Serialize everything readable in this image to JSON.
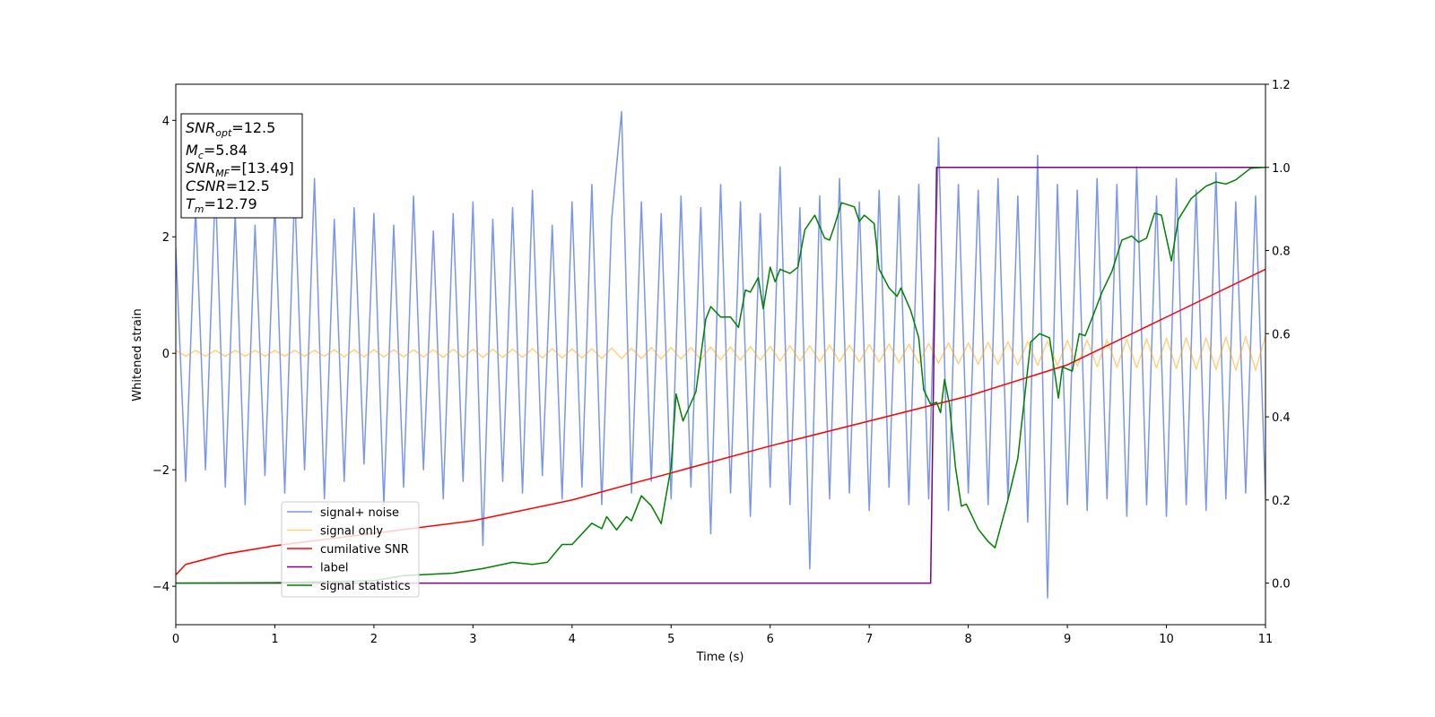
{
  "chart_data": {
    "type": "line",
    "xlabel": "Time (s)",
    "ylabel": "Whitened strain",
    "xlim": [
      0,
      11
    ],
    "xticks": [
      0,
      1,
      2,
      3,
      4,
      5,
      6,
      7,
      8,
      9,
      10,
      11
    ],
    "ylim": [
      -4.66,
      4.62
    ],
    "yticks": [
      {
        "value": -4,
        "label": "−4"
      },
      {
        "value": -2,
        "label": "−2"
      },
      0,
      2,
      4
    ],
    "y2lim": [
      -0.1,
      1.2
    ],
    "y2ticks": [
      {
        "value": 0,
        "label": "0.0"
      },
      0.2,
      0.4,
      0.6,
      0.8,
      {
        "value": 1,
        "label": "1.0"
      },
      1.2
    ],
    "textbox": [
      {
        "name": "SNR",
        "sub": "opt",
        "text": "=12.5"
      },
      {
        "name": "M",
        "sub": "c",
        "text": "=5.84"
      },
      {
        "name": "SNR",
        "sub": "MF",
        "text": "=[13.49]"
      },
      {
        "name": "CSNR",
        "text": "=12.5"
      },
      {
        "name": "T",
        "sub": "m",
        "text": "=12.79"
      }
    ],
    "x": [
      0,
      0.1,
      0.2,
      0.3,
      0.4,
      0.5,
      0.6,
      0.7,
      0.8,
      0.9,
      1,
      1.1,
      1.2,
      1.3,
      1.4,
      1.5,
      1.6,
      1.7,
      1.8,
      1.9,
      2,
      2.1,
      2.2,
      2.3,
      2.4,
      2.5,
      2.6,
      2.7,
      2.8,
      2.9,
      3,
      3.1,
      3.2,
      3.3,
      3.4,
      3.5,
      3.6,
      3.7,
      3.8,
      3.9,
      4,
      4.1,
      4.2,
      4.3,
      4.4,
      4.5,
      4.6,
      4.7,
      4.8,
      4.9,
      5,
      5.1,
      5.2,
      5.3,
      5.4,
      5.5,
      5.6,
      5.7,
      5.8,
      5.9,
      6,
      6.1,
      6.2,
      6.3,
      6.4,
      6.5,
      6.6,
      6.7,
      6.8,
      6.9,
      7,
      7.1,
      7.2,
      7.3,
      7.4,
      7.5,
      7.6,
      7.7,
      7.8,
      7.9,
      8,
      8.1,
      8.2,
      8.3,
      8.4,
      8.5,
      8.6,
      8.7,
      8.8,
      8.9,
      9,
      9.1,
      9.2,
      9.3,
      9.4,
      9.5,
      9.6,
      9.7,
      9.8,
      9.9,
      10,
      10.1,
      10.2,
      10.3,
      10.4,
      10.5,
      10.6,
      10.7,
      10.8,
      10.9,
      11
    ],
    "series": [
      {
        "name": "signal+ noise",
        "color": "#4169e1",
        "alpha": 0.7,
        "values": [
          1.8,
          -2.2,
          2.5,
          -2.0,
          2.9,
          -2.3,
          2.4,
          -2.6,
          2.2,
          -2.1,
          2.6,
          -2.4,
          2.8,
          -2.0,
          3.0,
          -2.5,
          2.3,
          -2.2,
          2.5,
          -1.9,
          2.4,
          -2.6,
          2.2,
          -2.3,
          2.7,
          -2.0,
          2.1,
          -2.5,
          2.4,
          -2.2,
          2.6,
          -3.3,
          2.3,
          -2.2,
          2.5,
          -2.4,
          2.8,
          -2.1,
          2.2,
          -2.5,
          2.6,
          -2.3,
          2.9,
          -2.6,
          2.3,
          4.15,
          -2.4,
          2.6,
          -2.2,
          2.4,
          -2.5,
          2.7,
          -2.3,
          2.5,
          -3.1,
          2.9,
          -2.4,
          2.6,
          -2.8,
          2.4,
          -2.3,
          3.2,
          -2.6,
          2.5,
          -3.7,
          2.7,
          -2.5,
          3.0,
          -2.4,
          2.6,
          -2.7,
          2.8,
          -2.3,
          2.7,
          -2.6,
          2.9,
          -2.5,
          3.7,
          -2.7,
          2.9,
          -2.4,
          2.8,
          -2.6,
          3.0,
          -2.5,
          2.7,
          -2.9,
          3.4,
          -4.2,
          2.9,
          -2.6,
          2.8,
          -2.7,
          3.0,
          -2.5,
          2.9,
          -2.8,
          3.2,
          -2.6,
          2.7,
          -2.8,
          3.0,
          -2.6,
          2.8,
          -2.7,
          3.1,
          -2.5,
          2.6,
          -2.4,
          2.7,
          -2.5
        ]
      },
      {
        "name": "signal only",
        "color": "#ffa500",
        "alpha": 0.5,
        "values": [
          0.05,
          -0.05,
          0.05,
          -0.05,
          0.05,
          -0.05,
          0.05,
          -0.05,
          0.05,
          -0.05,
          0.05,
          -0.05,
          0.05,
          -0.05,
          0.05,
          -0.05,
          0.06,
          -0.06,
          0.06,
          -0.06,
          0.06,
          -0.06,
          0.06,
          -0.06,
          0.06,
          -0.06,
          0.06,
          -0.07,
          0.07,
          -0.07,
          0.07,
          -0.07,
          0.07,
          -0.07,
          0.07,
          -0.07,
          0.08,
          -0.08,
          0.08,
          -0.08,
          0.08,
          -0.08,
          0.08,
          -0.09,
          0.09,
          -0.09,
          0.09,
          -0.09,
          0.1,
          -0.1,
          0.1,
          -0.1,
          0.1,
          -0.11,
          0.11,
          -0.11,
          0.11,
          -0.12,
          0.12,
          -0.12,
          0.12,
          -0.13,
          0.13,
          -0.13,
          0.13,
          -0.14,
          0.14,
          -0.14,
          0.14,
          -0.15,
          0.15,
          -0.15,
          0.16,
          -0.16,
          0.16,
          -0.17,
          0.17,
          -0.17,
          0.18,
          -0.18,
          0.18,
          -0.19,
          0.19,
          -0.19,
          0.2,
          -0.2,
          0.2,
          -0.21,
          0.21,
          -0.21,
          0.22,
          -0.22,
          0.23,
          -0.23,
          0.23,
          -0.24,
          0.24,
          -0.25,
          0.25,
          -0.25,
          0.26,
          -0.26,
          0.27,
          -0.27,
          0.27,
          -0.28,
          0.28,
          -0.29,
          0.29,
          -0.29,
          0.3
        ]
      },
      {
        "name": "cumilative SNR",
        "color": "#ff0000",
        "axis": "y2",
        "x": [
          0,
          0.1,
          0.5,
          1,
          2,
          3,
          4,
          5,
          6,
          7,
          8,
          9,
          10,
          11
        ],
        "values": [
          0.02,
          0.045,
          0.07,
          0.09,
          0.12,
          0.15,
          0.2,
          0.265,
          0.33,
          0.39,
          0.45,
          0.525,
          0.64,
          0.755
        ]
      },
      {
        "name": "label",
        "color": "#800080",
        "axis": "y2",
        "x": [
          0,
          7.62,
          7.68,
          11
        ],
        "values": [
          0,
          0,
          1,
          1
        ]
      },
      {
        "name": "signal statistics",
        "color": "#008000",
        "axis": "y2",
        "x": [
          0,
          1,
          2,
          2.3,
          2.8,
          3.1,
          3.4,
          3.6,
          3.75,
          3.9,
          4,
          4.2,
          4.3,
          4.35,
          4.45,
          4.55,
          4.6,
          4.7,
          4.8,
          4.9,
          5,
          5.05,
          5.12,
          5.25,
          5.35,
          5.4,
          5.5,
          5.6,
          5.68,
          5.75,
          5.8,
          5.88,
          5.93,
          6,
          6.05,
          6.1,
          6.2,
          6.28,
          6.35,
          6.45,
          6.55,
          6.6,
          6.65,
          6.72,
          6.85,
          6.9,
          6.95,
          7.05,
          7.1,
          7.2,
          7.28,
          7.32,
          7.42,
          7.5,
          7.55,
          7.62,
          7.68,
          7.72,
          7.76,
          7.81,
          7.87,
          7.93,
          7.98,
          8.1,
          8.2,
          8.27,
          8.4,
          8.5,
          8.63,
          8.72,
          8.82,
          8.91,
          8.95,
          9.05,
          9.12,
          9.18,
          9.27,
          9.35,
          9.45,
          9.55,
          9.65,
          9.72,
          9.8,
          9.88,
          9.95,
          10.05,
          10.12,
          10.25,
          10.4,
          10.5,
          10.6,
          10.7,
          10.85,
          11
        ],
        "values": [
          0,
          0.001,
          0.006,
          0.018,
          0.024,
          0.035,
          0.05,
          0.045,
          0.05,
          0.093,
          0.093,
          0.144,
          0.131,
          0.16,
          0.128,
          0.16,
          0.15,
          0.21,
          0.186,
          0.143,
          0.28,
          0.455,
          0.39,
          0.46,
          0.635,
          0.665,
          0.64,
          0.64,
          0.615,
          0.705,
          0.7,
          0.735,
          0.66,
          0.76,
          0.725,
          0.755,
          0.745,
          0.76,
          0.85,
          0.885,
          0.83,
          0.825,
          0.86,
          0.915,
          0.905,
          0.87,
          0.885,
          0.865,
          0.755,
          0.71,
          0.69,
          0.71,
          0.655,
          0.59,
          0.465,
          0.43,
          0.435,
          0.41,
          0.49,
          0.43,
          0.28,
          0.185,
          0.19,
          0.13,
          0.1,
          0.085,
          0.2,
          0.3,
          0.58,
          0.6,
          0.59,
          0.445,
          0.52,
          0.51,
          0.6,
          0.595,
          0.65,
          0.7,
          0.75,
          0.825,
          0.835,
          0.82,
          0.83,
          0.89,
          0.885,
          0.775,
          0.875,
          0.925,
          0.955,
          0.965,
          0.96,
          0.97,
          0.998,
          1.0
        ]
      }
    ]
  }
}
